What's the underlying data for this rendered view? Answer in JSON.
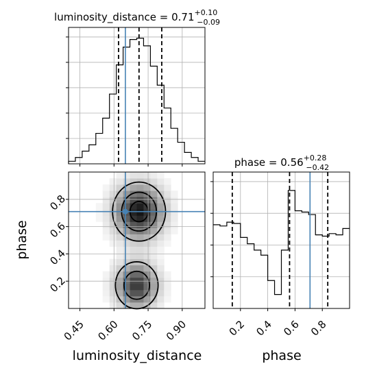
{
  "chart_data": {
    "type": "corner",
    "parameters": [
      "luminosity_distance",
      "phase"
    ],
    "truth": {
      "luminosity_distance": 0.65,
      "phase": 0.71
    },
    "panels": {
      "luminosity_distance_hist": {
        "type": "histogram",
        "title_name": "luminosity_distance",
        "title_value": "0.71",
        "title_plus": "+0.10",
        "title_minus": "−0.09",
        "xlim": [
          0.4,
          1.0
        ],
        "bin_edges": [
          0.4,
          0.43,
          0.46,
          0.49,
          0.52,
          0.55,
          0.58,
          0.61,
          0.64,
          0.67,
          0.7,
          0.73,
          0.76,
          0.79,
          0.82,
          0.85,
          0.88,
          0.91,
          0.94,
          0.97,
          1.0
        ],
        "counts": [
          0.02,
          0.05,
          0.1,
          0.15,
          0.24,
          0.36,
          0.55,
          0.78,
          0.92,
          0.98,
          0.99,
          0.93,
          0.77,
          0.62,
          0.44,
          0.28,
          0.17,
          0.09,
          0.05,
          0.02
        ],
        "quantiles": [
          0.62,
          0.71,
          0.81
        ]
      },
      "phase_hist": {
        "type": "histogram",
        "title_name": "phase",
        "title_value": "0.56",
        "title_plus": "+0.28",
        "title_minus": "−0.42",
        "xlim": [
          0.0,
          1.0
        ],
        "xticks": [
          "0.2",
          "0.4",
          "0.6",
          "0.8"
        ],
        "bin_edges": [
          0.0,
          0.05,
          0.1,
          0.15,
          0.2,
          0.25,
          0.3,
          0.35,
          0.4,
          0.45,
          0.5,
          0.55,
          0.6,
          0.65,
          0.7,
          0.75,
          0.8,
          0.85,
          0.9,
          0.95,
          1.0
        ],
        "counts": [
          0.66,
          0.65,
          0.68,
          0.67,
          0.56,
          0.51,
          0.46,
          0.42,
          0.22,
          0.11,
          0.46,
          0.93,
          0.77,
          0.76,
          0.74,
          0.58,
          0.57,
          0.59,
          0.58,
          0.63
        ],
        "quantiles": [
          0.14,
          0.56,
          0.84
        ]
      },
      "joint": {
        "type": "heatmap-contour",
        "xlim": [
          0.4,
          1.0
        ],
        "ylim": [
          0.0,
          1.0
        ],
        "xticks": [
          "0.45",
          "0.60",
          "0.75",
          "0.90"
        ],
        "yticks": [
          "0.2",
          "0.4",
          "0.6",
          "0.8"
        ],
        "modes": [
          {
            "x": 0.71,
            "y": 0.71,
            "sx": 0.07,
            "sy": 0.13,
            "weight": 1.0
          },
          {
            "x": 0.7,
            "y": 0.17,
            "sx": 0.06,
            "sy": 0.11,
            "weight": 0.85
          }
        ]
      }
    },
    "xlabel_1": "luminosity_distance",
    "xlabel_2": "phase",
    "ylabel_1": "phase"
  }
}
